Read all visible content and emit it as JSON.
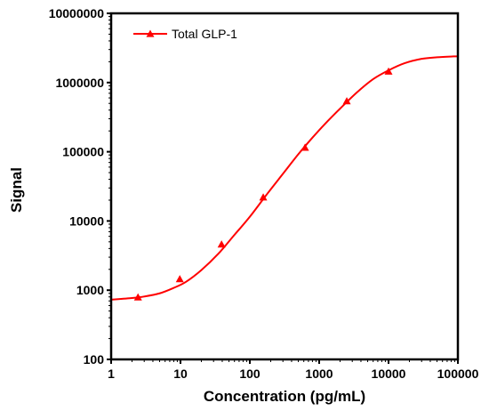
{
  "chart_data": {
    "type": "line",
    "title": "",
    "xlabel": "Concentration (pg/mL)",
    "ylabel": "Signal",
    "x_scale": "log",
    "y_scale": "log",
    "xlim": [
      1,
      100000
    ],
    "ylim": [
      100,
      10000000
    ],
    "x_ticks": [
      "1",
      "10",
      "100",
      "1000",
      "10000",
      "100000"
    ],
    "y_ticks": [
      "100",
      "1000",
      "10000",
      "100000",
      "1000000",
      "10000000"
    ],
    "grid": false,
    "legend_position": "top-left",
    "series": [
      {
        "name": "Total GLP-1",
        "color": "#ff0000",
        "marker": "triangle",
        "points": [
          {
            "x": 2.44,
            "y": 790
          },
          {
            "x": 9.77,
            "y": 1450
          },
          {
            "x": 39.1,
            "y": 4600
          },
          {
            "x": 156,
            "y": 22000
          },
          {
            "x": 625,
            "y": 115000
          },
          {
            "x": 2500,
            "y": 540000
          },
          {
            "x": 10000,
            "y": 1450000
          }
        ],
        "curve": {
          "x": [
            1,
            2,
            3,
            5,
            8,
            12,
            20,
            35,
            60,
            100,
            180,
            300,
            500,
            800,
            1200,
            2000,
            3500,
            6000,
            10000,
            17000,
            30000,
            50000,
            100000
          ],
          "y": [
            730,
            770,
            810,
            900,
            1080,
            1320,
            1950,
            3350,
            6300,
            11500,
            25000,
            48000,
            92000,
            160000,
            250000,
            420000,
            720000,
            1120000,
            1500000,
            1900000,
            2200000,
            2320000,
            2400000
          ]
        }
      }
    ]
  }
}
